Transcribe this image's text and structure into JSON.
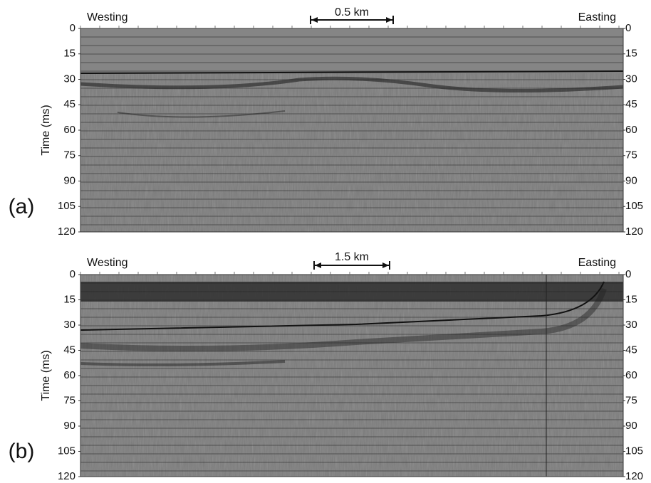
{
  "panels": [
    {
      "label": "(a)",
      "left_title": "Westing",
      "right_title": "Easting",
      "scale_label": "0.5 km",
      "ylabel": "Time (ms)",
      "ylim": [
        0,
        120
      ],
      "yticks": [
        0,
        15,
        30,
        45,
        60,
        75,
        90,
        105,
        120
      ]
    },
    {
      "label": "(b)",
      "left_title": "Westing",
      "right_title": "Easting",
      "scale_label": "1.5 km",
      "ylabel": "Time (ms)",
      "ylim": [
        0,
        120
      ],
      "yticks": [
        0,
        15,
        30,
        45,
        60,
        75,
        90,
        105,
        120
      ]
    }
  ]
}
